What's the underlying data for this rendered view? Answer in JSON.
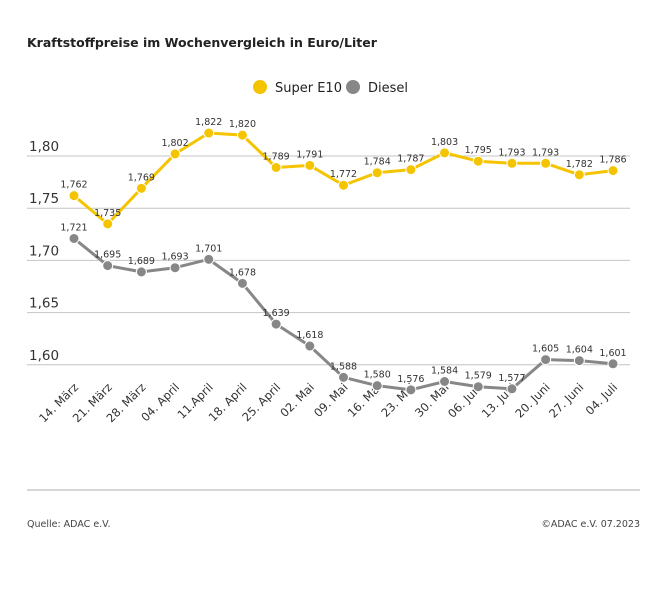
{
  "chart_data": {
    "type": "line",
    "title": "Kraftstoffpreise im Wochenvergleich in Euro/Liter",
    "categories": [
      "14. März",
      "21. März",
      "28. März",
      "04. April",
      "11.April",
      "18. April",
      "25. April",
      "02. Mai",
      "09. Mai",
      "16. Mai",
      "23. Mai",
      "30. Mai",
      "06. Juni",
      "13. Juni",
      "20. Juni",
      "27. Juni",
      "04. Juli"
    ],
    "series": [
      {
        "name": "Super E10",
        "color": "#f5c400",
        "values": [
          1.762,
          1.735,
          1.769,
          1.802,
          1.822,
          1.82,
          1.789,
          1.791,
          1.772,
          1.784,
          1.787,
          1.803,
          1.795,
          1.793,
          1.793,
          1.782,
          1.786
        ],
        "labels": [
          "1,762",
          "1,735",
          "1,769",
          "1,802",
          "1,822",
          "1,820",
          "1,789",
          "1,791",
          "1,772",
          "1,784",
          "1,787",
          "1,803",
          "1,795",
          "1,793",
          "1,793",
          "1,782",
          "1,786"
        ]
      },
      {
        "name": "Diesel",
        "color": "#878787",
        "values": [
          1.721,
          1.695,
          1.689,
          1.693,
          1.701,
          1.678,
          1.639,
          1.618,
          1.588,
          1.58,
          1.576,
          1.584,
          1.579,
          1.577,
          1.605,
          1.604,
          1.601
        ],
        "labels": [
          "1,721",
          "1,695",
          "1,689",
          "1,693",
          "1,701",
          "1,678",
          "1,639",
          "1,618",
          "1,588",
          "1,580",
          "1,576",
          "1,584",
          "1,579",
          "1,577",
          "1,605",
          "1,604",
          "1,601"
        ]
      }
    ],
    "yticks": [
      1.8,
      1.75,
      1.7,
      1.65,
      1.6
    ],
    "ytick_labels": [
      "1,80",
      "1,75",
      "1,70",
      "1,65",
      "1,60"
    ],
    "ylim": [
      1.56,
      1.83
    ],
    "grid": true,
    "legend_position": "top-center",
    "xlabel": "",
    "ylabel": ""
  },
  "footer": {
    "source": "Quelle: ADAC e.V.",
    "copyright": "©ADAC e.V. 07.2023"
  }
}
